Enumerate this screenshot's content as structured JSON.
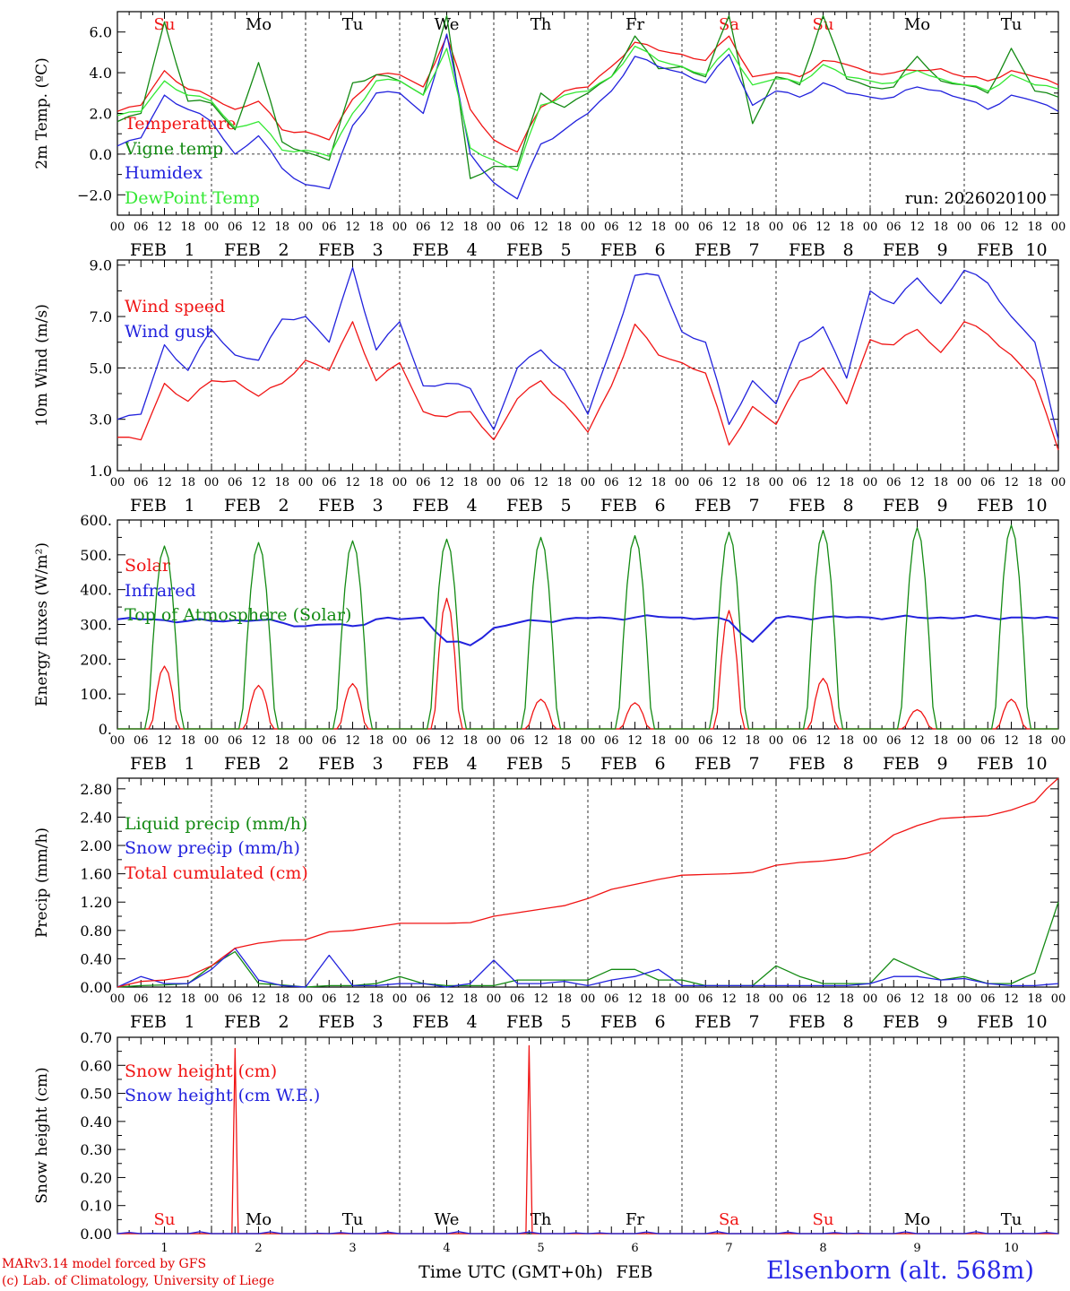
{
  "colors": {
    "red": "#f01414",
    "green": "#138a13",
    "blue": "#2222dd",
    "lightgreen": "#33e833",
    "black": "#000000"
  },
  "x_axis": {
    "hour_ticks": [
      "00",
      "06",
      "12",
      "18"
    ],
    "last_tick": "00",
    "month": "FEB",
    "dates": [
      "1",
      "2",
      "3",
      "4",
      "5",
      "6",
      "7",
      "8",
      "9",
      "10"
    ],
    "weekdays": [
      {
        "label": "Su",
        "weekend": true
      },
      {
        "label": "Mo",
        "weekend": false
      },
      {
        "label": "Tu",
        "weekend": false
      },
      {
        "label": "We",
        "weekend": false
      },
      {
        "label": "Th",
        "weekend": false
      },
      {
        "label": "Fr",
        "weekend": false
      },
      {
        "label": "Sa",
        "weekend": true
      },
      {
        "label": "Su",
        "weekend": true
      },
      {
        "label": "Mo",
        "weekend": false
      },
      {
        "label": "Tu",
        "weekend": false
      }
    ],
    "title_start": "Time UTC (GMT+0h)",
    "title_end": "FEB"
  },
  "footer": {
    "credit_line1": "MARv3.14 model forced by GFS",
    "credit_line2": "(c) Lab. of Climatology, University of Liege",
    "station": "Elsenborn (alt. 568m)"
  },
  "chart_data": [
    {
      "type": "line",
      "ylabel": "2m Temp. (ºC)",
      "ylim": [
        -3.0,
        7.0
      ],
      "yticks": [
        -2,
        0,
        2,
        4,
        6
      ],
      "ytick_labels": [
        "−2.0",
        "0.0",
        "2.0",
        "4.0",
        "6.0"
      ],
      "ref_line": 0,
      "annotation": "run: 2026020100",
      "x_hours": [
        0,
        6,
        12,
        18,
        24,
        30,
        36,
        42,
        48,
        54,
        60,
        66,
        72,
        78,
        84,
        90,
        96,
        102,
        108,
        114,
        120,
        126,
        132,
        138,
        144,
        150,
        156,
        162,
        168,
        174,
        180,
        186,
        192,
        198,
        204,
        210,
        216,
        222,
        228,
        234,
        240
      ],
      "series": [
        {
          "name": "Temperature",
          "color": "#f01414",
          "values": [
            2.1,
            2.4,
            4.1,
            3.2,
            2.8,
            2.2,
            2.6,
            1.2,
            1.1,
            0.7,
            2.7,
            3.9,
            3.9,
            3.3,
            5.8,
            2.2,
            0.7,
            0.1,
            2.3,
            3.1,
            3.3,
            4.3,
            5.5,
            5.1,
            4.9,
            4.6,
            5.8,
            3.8,
            4.0,
            3.8,
            4.6,
            4.4,
            4.0,
            4.0,
            4.1,
            4.2,
            3.8,
            3.6,
            4.1,
            3.8,
            3.4
          ]
        },
        {
          "name": "Vigne temp",
          "color": "#138a13",
          "values": [
            1.6,
            2.0,
            6.5,
            2.6,
            2.5,
            1.2,
            4.5,
            0.6,
            0.1,
            -0.3,
            3.5,
            3.9,
            3.6,
            2.9,
            6.8,
            -1.2,
            -0.6,
            -0.6,
            3.0,
            2.3,
            3.0,
            3.8,
            5.8,
            4.2,
            4.3,
            3.8,
            6.8,
            1.5,
            3.8,
            3.4,
            6.8,
            3.7,
            3.3,
            3.3,
            4.8,
            3.6,
            3.4,
            3.0,
            5.2,
            3.1,
            2.8
          ]
        },
        {
          "name": "Humidex",
          "color": "#2222dd",
          "values": [
            0.4,
            0.8,
            2.9,
            2.2,
            1.6,
            0.0,
            0.9,
            -0.7,
            -1.5,
            -1.7,
            1.4,
            3.0,
            3.0,
            2.0,
            5.9,
            0.0,
            -1.4,
            -2.2,
            0.5,
            1.2,
            2.0,
            3.1,
            4.8,
            4.3,
            4.0,
            3.5,
            4.9,
            2.4,
            3.1,
            2.8,
            3.5,
            3.0,
            2.8,
            2.8,
            3.3,
            3.1,
            2.7,
            2.2,
            2.9,
            2.6,
            2.1
          ]
        },
        {
          "name": "DewPoint Temp",
          "color": "#33e833",
          "values": [
            1.9,
            2.1,
            3.6,
            2.9,
            2.6,
            1.3,
            1.6,
            0.2,
            0.2,
            -0.1,
            2.0,
            3.6,
            3.6,
            2.9,
            5.2,
            0.3,
            -0.3,
            -0.8,
            2.4,
            2.9,
            3.1,
            3.8,
            5.3,
            4.6,
            4.3,
            3.9,
            5.2,
            3.4,
            3.7,
            3.5,
            4.4,
            3.8,
            3.6,
            3.5,
            4.1,
            3.7,
            3.4,
            3.1,
            3.9,
            3.4,
            3.2
          ]
        }
      ]
    },
    {
      "type": "line",
      "ylabel": "10m Wind (m/s)",
      "ylim": [
        1.0,
        9.2
      ],
      "yticks": [
        1,
        3,
        5,
        7,
        9
      ],
      "ytick_labels": [
        "1.0",
        "3.0",
        "5.0",
        "7.0",
        "9.0"
      ],
      "ref_line": 5,
      "x_hours": [
        0,
        6,
        12,
        18,
        24,
        30,
        36,
        42,
        48,
        54,
        60,
        66,
        72,
        78,
        84,
        90,
        96,
        102,
        108,
        114,
        120,
        126,
        132,
        138,
        144,
        150,
        156,
        162,
        168,
        174,
        180,
        186,
        192,
        198,
        204,
        210,
        216,
        222,
        228,
        234,
        240
      ],
      "series": [
        {
          "name": "Wind speed",
          "color": "#f01414",
          "values": [
            2.3,
            2.2,
            4.4,
            3.7,
            4.5,
            4.5,
            3.9,
            4.4,
            5.3,
            4.9,
            6.8,
            4.5,
            5.2,
            3.3,
            3.1,
            3.3,
            2.2,
            3.8,
            4.5,
            3.6,
            2.5,
            4.3,
            6.7,
            5.5,
            5.2,
            4.8,
            2.0,
            3.5,
            2.8,
            4.5,
            5.0,
            3.6,
            6.1,
            5.9,
            6.5,
            5.6,
            6.8,
            6.3,
            5.5,
            4.5,
            1.8
          ]
        },
        {
          "name": "Wind gust",
          "color": "#2222dd",
          "values": [
            3.0,
            3.2,
            5.9,
            4.9,
            6.5,
            5.5,
            5.3,
            6.9,
            7.0,
            6.0,
            8.9,
            5.7,
            6.8,
            4.3,
            4.4,
            4.2,
            2.6,
            5.0,
            5.7,
            4.9,
            3.2,
            5.8,
            8.6,
            8.6,
            6.4,
            6.0,
            2.8,
            4.5,
            3.6,
            6.0,
            6.6,
            4.6,
            8.0,
            7.5,
            8.5,
            7.5,
            8.8,
            8.3,
            7.0,
            6.0,
            2.2
          ]
        }
      ]
    },
    {
      "type": "line",
      "ylabel": "Energy fluxes (W/m²)",
      "ylim": [
        0,
        600
      ],
      "yticks": [
        0,
        100,
        200,
        300,
        400,
        500,
        600
      ],
      "ytick_labels": [
        "0.",
        "100.",
        "200.",
        "300.",
        "400.",
        "500.",
        "600."
      ],
      "x_hours": [
        0,
        6,
        12,
        18,
        24,
        30,
        36,
        42,
        48,
        54,
        60,
        66,
        72,
        78,
        84,
        90,
        96,
        102,
        108,
        114,
        120,
        126,
        132,
        138,
        144,
        150,
        156,
        162,
        168,
        174,
        180,
        186,
        192,
        198,
        204,
        210,
        216,
        222,
        228,
        234,
        240
      ],
      "series": [
        {
          "name": "Solar",
          "color": "#f01414",
          "daily_peaks": [
            180,
            125,
            130,
            375,
            85,
            75,
            340,
            145,
            55,
            85
          ]
        },
        {
          "name": "Infrared",
          "color": "#2222dd",
          "values": [
            315,
            315,
            312,
            310,
            310,
            312,
            312,
            305,
            295,
            300,
            295,
            315,
            315,
            320,
            250,
            240,
            290,
            305,
            310,
            315,
            318,
            318,
            320,
            322,
            320,
            318,
            310,
            250,
            318,
            320,
            320,
            320,
            320,
            320,
            320,
            320,
            320,
            320,
            320,
            318,
            318
          ]
        },
        {
          "name": "Top of Atmosphere (Solar)",
          "color": "#138a13",
          "daily_peaks": [
            525,
            535,
            540,
            545,
            550,
            555,
            565,
            570,
            578,
            585
          ]
        }
      ]
    },
    {
      "type": "line",
      "ylabel": "Precip (mm/h)",
      "ylim": [
        0,
        2.95
      ],
      "yticks": [
        0,
        0.4,
        0.8,
        1.2,
        1.6,
        2.0,
        2.4,
        2.8
      ],
      "ytick_labels": [
        "0.00",
        "0.40",
        "0.80",
        "1.20",
        "1.60",
        "2.00",
        "2.40",
        "2.80"
      ],
      "x_hours": [
        0,
        6,
        12,
        18,
        24,
        30,
        36,
        42,
        48,
        54,
        60,
        66,
        72,
        78,
        84,
        90,
        96,
        102,
        108,
        114,
        120,
        126,
        132,
        138,
        144,
        150,
        156,
        162,
        168,
        174,
        180,
        186,
        192,
        198,
        204,
        210,
        216,
        222,
        228,
        234,
        240
      ],
      "series": [
        {
          "name": "Liquid precip (mm/h)",
          "color": "#138a13",
          "values": [
            0,
            0.02,
            0.03,
            0.05,
            0.3,
            0.5,
            0.05,
            0.03,
            0,
            0.02,
            0.02,
            0.05,
            0.15,
            0.05,
            0.02,
            0.02,
            0.02,
            0.1,
            0.1,
            0.1,
            0.1,
            0.25,
            0.25,
            0.1,
            0.1,
            0.02,
            0.02,
            0.02,
            0.3,
            0.15,
            0.05,
            0.05,
            0.05,
            0.4,
            0.25,
            0.1,
            0.15,
            0.05,
            0.05,
            0.2,
            1.2
          ]
        },
        {
          "name": "Snow precip (mm/h)",
          "color": "#2222dd",
          "values": [
            0,
            0.15,
            0.05,
            0.05,
            0.25,
            0.55,
            0.1,
            0.02,
            0,
            0.45,
            0.02,
            0.02,
            0.05,
            0.05,
            0,
            0.05,
            0.38,
            0.05,
            0.05,
            0.08,
            0.02,
            0.1,
            0.15,
            0.25,
            0.02,
            0.02,
            0.02,
            0.02,
            0.02,
            0.02,
            0.02,
            0.02,
            0.05,
            0.15,
            0.15,
            0.1,
            0.12,
            0.05,
            0.02,
            0.02,
            0.05
          ]
        },
        {
          "name": "Total cumulated (cm)",
          "color": "#f01414",
          "values": [
            0,
            0.08,
            0.1,
            0.15,
            0.3,
            0.55,
            0.62,
            0.66,
            0.67,
            0.78,
            0.8,
            0.85,
            0.9,
            0.9,
            0.9,
            0.91,
            1.0,
            1.05,
            1.1,
            1.15,
            1.25,
            1.38,
            1.45,
            1.52,
            1.58,
            1.59,
            1.6,
            1.62,
            1.72,
            1.76,
            1.78,
            1.82,
            1.9,
            2.15,
            2.28,
            2.38,
            2.4,
            2.42,
            2.5,
            2.62,
            2.98
          ]
        }
      ]
    },
    {
      "type": "line",
      "ylabel": "Snow height (cm)",
      "ylim": [
        0,
        0.7
      ],
      "yticks": [
        0,
        0.1,
        0.2,
        0.3,
        0.4,
        0.5,
        0.6,
        0.7
      ],
      "ytick_labels": [
        "0.00",
        "0.10",
        "0.20",
        "0.30",
        "0.40",
        "0.50",
        "0.60",
        "0.70"
      ],
      "x_hours": [
        0,
        6,
        12,
        18,
        24,
        30,
        36,
        42,
        48,
        54,
        60,
        66,
        72,
        78,
        84,
        90,
        96,
        102,
        108,
        114,
        120,
        126,
        132,
        138,
        144,
        150,
        156,
        162,
        168,
        174,
        180,
        186,
        192,
        198,
        204,
        210,
        216,
        222,
        228,
        234,
        240
      ],
      "series": [
        {
          "name": "Snow height (cm)",
          "color": "#f01414",
          "spikes": [
            {
              "hour": 30,
              "value": 0.66
            },
            {
              "hour": 105,
              "value": 0.67
            }
          ]
        },
        {
          "name": "Snow height (cm W.E.)",
          "color": "#2222dd",
          "values": [
            0,
            0,
            0,
            0,
            0,
            0,
            0,
            0,
            0,
            0,
            0,
            0,
            0,
            0,
            0,
            0,
            0,
            0,
            0,
            0,
            0,
            0,
            0,
            0,
            0,
            0,
            0,
            0,
            0,
            0,
            0,
            0,
            0,
            0,
            0,
            0,
            0,
            0,
            0,
            0,
            0
          ]
        }
      ]
    }
  ]
}
